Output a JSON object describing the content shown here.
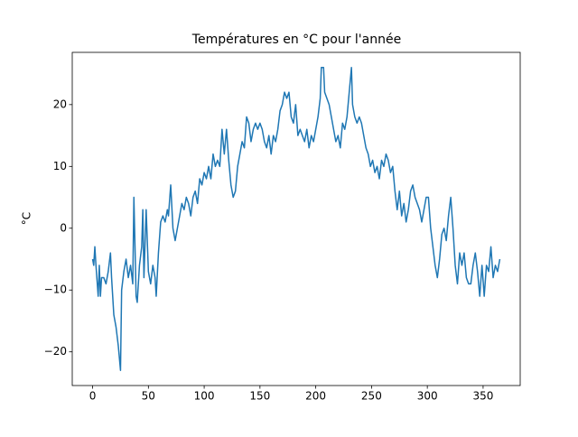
{
  "chart_data": {
    "type": "line",
    "title": "Températures en °C pour l'année",
    "ylabel": "°C",
    "color": "#1f77b4",
    "x": [
      0,
      1,
      2,
      3,
      5,
      6,
      7,
      8,
      10,
      12,
      14,
      16,
      17,
      19,
      21,
      23,
      25,
      26,
      28,
      30,
      32,
      34,
      36,
      37,
      38,
      39,
      40,
      42,
      44,
      45,
      46,
      48,
      50,
      52,
      54,
      56,
      57,
      59,
      61,
      63,
      65,
      67,
      68,
      70,
      72,
      74,
      76,
      78,
      80,
      82,
      84,
      86,
      88,
      90,
      92,
      94,
      96,
      98,
      100,
      102,
      104,
      106,
      108,
      110,
      112,
      114,
      116,
      118,
      120,
      122,
      124,
      126,
      128,
      130,
      132,
      134,
      136,
      138,
      140,
      142,
      144,
      146,
      148,
      150,
      152,
      154,
      156,
      158,
      160,
      162,
      164,
      166,
      168,
      170,
      172,
      174,
      176,
      178,
      180,
      182,
      184,
      186,
      188,
      190,
      192,
      194,
      196,
      198,
      200,
      202,
      204,
      205,
      207,
      208,
      210,
      212,
      214,
      216,
      218,
      220,
      222,
      224,
      226,
      228,
      230,
      232,
      233,
      235,
      237,
      239,
      241,
      243,
      245,
      247,
      249,
      251,
      253,
      255,
      257,
      259,
      261,
      263,
      265,
      267,
      269,
      271,
      273,
      275,
      277,
      279,
      281,
      283,
      285,
      287,
      289,
      291,
      293,
      295,
      297,
      299,
      301,
      303,
      305,
      307,
      309,
      311,
      313,
      315,
      317,
      319,
      321,
      323,
      325,
      327,
      329,
      331,
      333,
      335,
      337,
      339,
      341,
      343,
      345,
      347,
      349,
      351,
      353,
      355,
      357,
      359,
      361,
      363,
      365
    ],
    "values": [
      -5,
      -6,
      -3,
      -6,
      -11,
      -6,
      -11,
      -8,
      -8,
      -9,
      -7,
      -4,
      -8,
      -14,
      -16,
      -19,
      -23,
      -10,
      -7,
      -5,
      -8,
      -6,
      -9,
      5,
      -3,
      -11,
      -12,
      -6,
      -3,
      3,
      -8,
      3,
      -7,
      -9,
      -6,
      -8,
      -11,
      -4,
      1,
      2,
      1,
      3,
      2,
      7,
      0,
      -2,
      0,
      2,
      4,
      3,
      5,
      4,
      2,
      5,
      6,
      4,
      8,
      7,
      9,
      8,
      10,
      8,
      12,
      10,
      11,
      10,
      16,
      12,
      16,
      11,
      7,
      5,
      6,
      10,
      12,
      14,
      13,
      18,
      17,
      14,
      16,
      17,
      16,
      17,
      16,
      14,
      13,
      15,
      12,
      15,
      14,
      16,
      19,
      20,
      22,
      21,
      22,
      18,
      17,
      20,
      15,
      16,
      15,
      14,
      16,
      13,
      15,
      14,
      16,
      18,
      21,
      26,
      26,
      22,
      21,
      20,
      18,
      16,
      14,
      15,
      13,
      17,
      16,
      18,
      22,
      26,
      20,
      18,
      17,
      18,
      17,
      15,
      13,
      12,
      10,
      11,
      9,
      10,
      8,
      11,
      10,
      12,
      11,
      9,
      10,
      6,
      3,
      6,
      2,
      4,
      1,
      3,
      6,
      7,
      5,
      4,
      3,
      1,
      3,
      5,
      5,
      0,
      -3,
      -6,
      -8,
      -5,
      -1,
      0,
      -2,
      2,
      5,
      0,
      -6,
      -9,
      -4,
      -6,
      -4,
      -8,
      -9,
      -9,
      -6,
      -4,
      -7,
      -11,
      -6,
      -11,
      -6,
      -7,
      -3,
      -8,
      -6,
      -7,
      -5
    ],
    "xlim": [
      -18.25,
      383.25
    ],
    "ylim": [
      -25.45,
      28.45
    ],
    "xticks": [
      0,
      50,
      100,
      150,
      200,
      250,
      300,
      350
    ],
    "yticks": [
      {
        "value": -20,
        "label": "−20"
      },
      {
        "value": -10,
        "label": "−10"
      },
      0,
      10,
      20
    ]
  }
}
